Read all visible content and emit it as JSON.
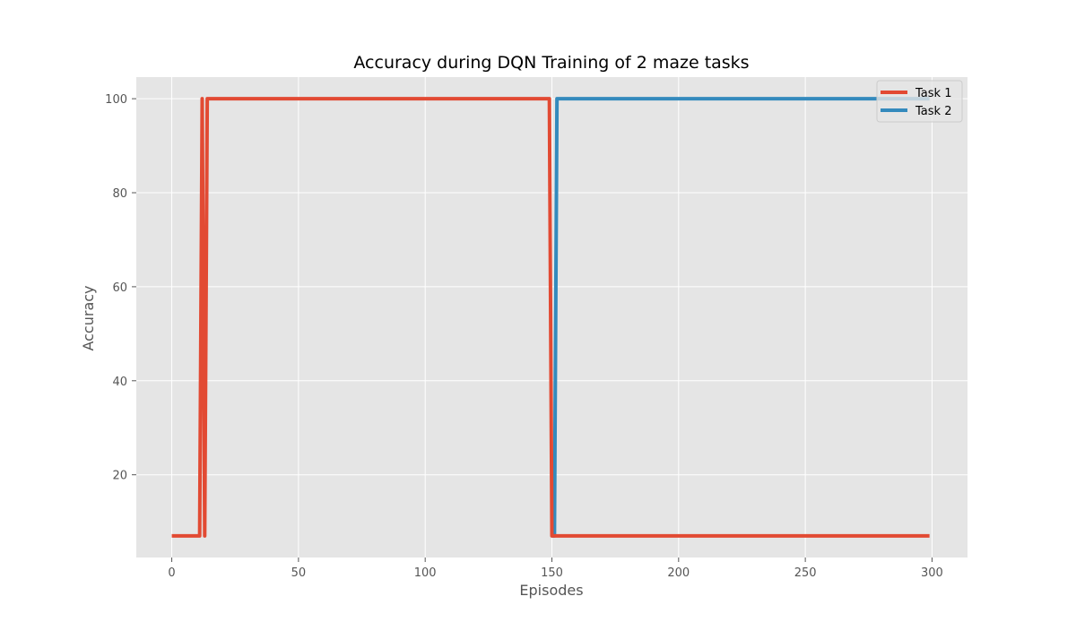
{
  "chart_data": {
    "type": "line",
    "title": "Accuracy during DQN Training of 2 maze tasks",
    "xlabel": "Episodes",
    "ylabel": "Accuracy",
    "xlim": [
      -14,
      314
    ],
    "ylim": [
      2.4,
      104.6
    ],
    "xticks": [
      0,
      50,
      100,
      150,
      200,
      250,
      300
    ],
    "yticks": [
      20,
      40,
      60,
      80,
      100
    ],
    "grid": true,
    "legend_position": "top-right",
    "colors": {
      "background": "#e5e5e5",
      "grid": "#ffffff"
    },
    "series": [
      {
        "name": "Task 1",
        "color": "#e24a33",
        "x": [
          0,
          11,
          12,
          13,
          14,
          149,
          150,
          299
        ],
        "y": [
          7,
          7,
          100,
          7,
          100,
          100,
          7,
          7
        ]
      },
      {
        "name": "Task 2",
        "color": "#348abd",
        "x": [
          150,
          151,
          152,
          299
        ],
        "y": [
          7,
          7,
          100,
          100
        ]
      }
    ]
  }
}
